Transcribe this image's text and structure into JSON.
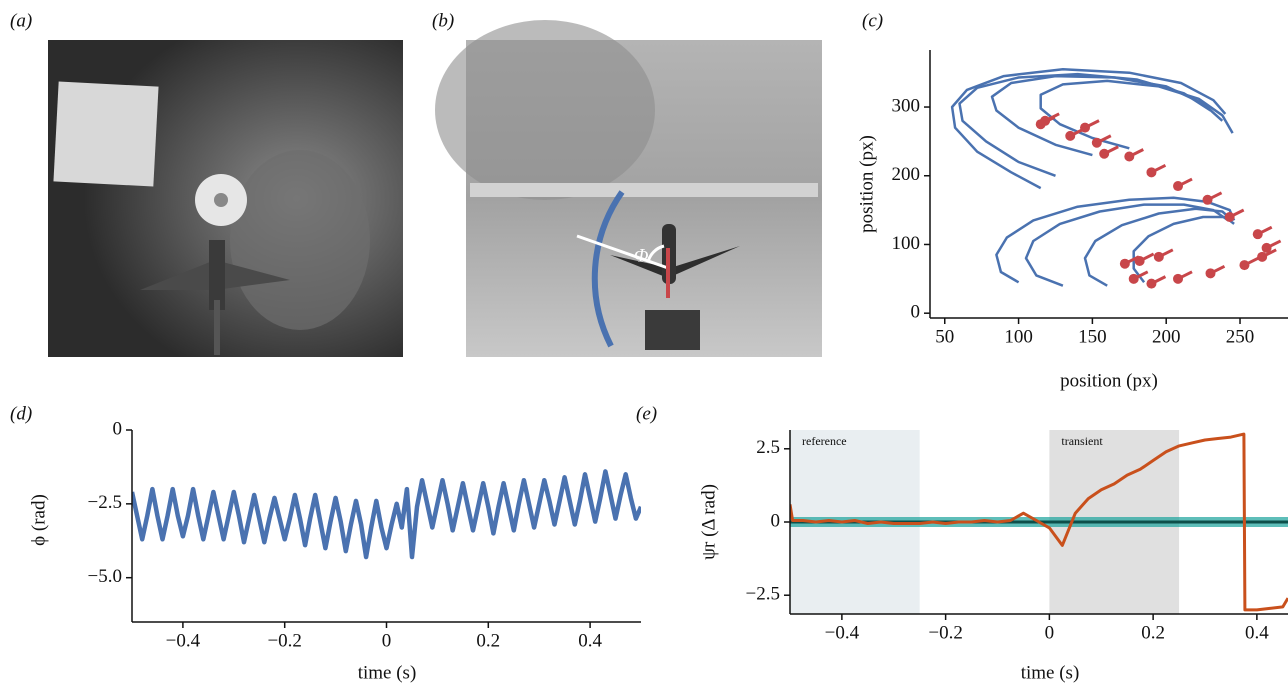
{
  "panel_labels": [
    "(a)",
    "(b)",
    "(c)",
    "(d)",
    "(e)"
  ],
  "photo_annotation": "Φ",
  "chart_data": [
    {
      "type": "line",
      "xlabel": "position (px)",
      "ylabel": "position (px)",
      "xlim": [
        40,
        282.5
      ],
      "ylim": [
        -7,
        383
      ],
      "xticks": [
        50,
        100,
        150,
        200,
        250
      ],
      "yticks": [
        0,
        100,
        200,
        300
      ],
      "series": [
        {
          "color": "#4a72b0",
          "style": "line",
          "x": [
            115,
            95,
            72,
            57,
            55,
            65,
            90,
            130,
            175,
            210,
            232,
            240
          ],
          "values": [
            182,
            205,
            235,
            270,
            300,
            325,
            345,
            355,
            350,
            335,
            310,
            290
          ]
        },
        {
          "color": "#4a72b0",
          "style": "line",
          "x": [
            125,
            100,
            78,
            62,
            60,
            72,
            100,
            140,
            180,
            212,
            230
          ],
          "values": [
            200,
            220,
            250,
            280,
            305,
            328,
            343,
            348,
            340,
            320,
            295
          ]
        },
        {
          "color": "#4a72b0",
          "style": "line",
          "x": [
            150,
            125,
            100,
            85,
            82,
            95,
            125,
            165,
            200,
            225,
            238
          ],
          "values": [
            230,
            245,
            270,
            295,
            315,
            335,
            345,
            343,
            330,
            305,
            280
          ]
        },
        {
          "color": "#4a72b0",
          "style": "line",
          "x": [
            175,
            150,
            128,
            115,
            115,
            130,
            160,
            195,
            222,
            238,
            245
          ],
          "values": [
            240,
            255,
            275,
            298,
            318,
            333,
            338,
            330,
            312,
            288,
            262
          ]
        },
        {
          "color": "#4a72b0",
          "style": "line",
          "x": [
            100,
            88,
            85,
            92,
            110,
            140,
            175,
            205,
            228,
            243,
            246
          ],
          "values": [
            45,
            60,
            85,
            110,
            135,
            155,
            165,
            168,
            162,
            150,
            135
          ]
        },
        {
          "color": "#4a72b0",
          "style": "line",
          "x": [
            130,
            112,
            105,
            110,
            128,
            155,
            185,
            212,
            232,
            242
          ],
          "values": [
            40,
            55,
            80,
            105,
            130,
            148,
            158,
            158,
            150,
            135
          ]
        },
        {
          "color": "#4a72b0",
          "style": "line",
          "x": [
            160,
            148,
            145,
            152,
            170,
            195,
            220,
            238,
            245
          ],
          "values": [
            40,
            55,
            80,
            105,
            128,
            145,
            152,
            148,
            135
          ]
        },
        {
          "color": "#4a72b0",
          "style": "line",
          "x": [
            185,
            178,
            178,
            188,
            205,
            225,
            240,
            246
          ],
          "values": [
            45,
            65,
            90,
            112,
            130,
            140,
            140,
            130
          ]
        },
        {
          "color": "#c8464a",
          "style": "points",
          "x": [
            115,
            118,
            135,
            145,
            153,
            158,
            175,
            190,
            208,
            228,
            243,
            262,
            268,
            265,
            253,
            230,
            208,
            190,
            178,
            172,
            182,
            195
          ],
          "values": [
            275,
            280,
            258,
            270,
            248,
            232,
            228,
            205,
            185,
            165,
            140,
            115,
            95,
            82,
            70,
            58,
            50,
            43,
            50,
            72,
            76,
            82
          ]
        }
      ]
    },
    {
      "type": "line",
      "xlabel": "time (s)",
      "ylabel": "ϕ (rad)",
      "xlim": [
        -0.5,
        0.5
      ],
      "ylim": [
        -6.5,
        0
      ],
      "xticks": [
        {
          "value": -0.4,
          "label": "−0.4"
        },
        {
          "value": -0.2,
          "label": "−0.2"
        },
        0,
        0.2,
        0.4
      ],
      "yticks": [
        0,
        {
          "value": -2.5,
          "label": "−2.5"
        },
        {
          "value": -5,
          "label": "−5.0"
        }
      ],
      "x": [
        -0.5,
        -0.49,
        -0.48,
        -0.47,
        -0.46,
        -0.45,
        -0.44,
        -0.43,
        -0.42,
        -0.41,
        -0.4,
        -0.39,
        -0.38,
        -0.37,
        -0.36,
        -0.35,
        -0.34,
        -0.33,
        -0.32,
        -0.31,
        -0.3,
        -0.29,
        -0.28,
        -0.27,
        -0.26,
        -0.25,
        -0.24,
        -0.23,
        -0.22,
        -0.21,
        -0.2,
        -0.19,
        -0.18,
        -0.17,
        -0.16,
        -0.15,
        -0.14,
        -0.13,
        -0.12,
        -0.11,
        -0.1,
        -0.09,
        -0.08,
        -0.07,
        -0.06,
        -0.05,
        -0.04,
        -0.03,
        -0.02,
        -0.01,
        0,
        0.01,
        0.02,
        0.03,
        0.04,
        0.05,
        0.06,
        0.07,
        0.08,
        0.09,
        0.1,
        0.11,
        0.12,
        0.13,
        0.14,
        0.15,
        0.16,
        0.17,
        0.18,
        0.19,
        0.2,
        0.21,
        0.22,
        0.23,
        0.24,
        0.25,
        0.26,
        0.27,
        0.28,
        0.29,
        0.3,
        0.31,
        0.32,
        0.33,
        0.34,
        0.35,
        0.36,
        0.37,
        0.38,
        0.39,
        0.4,
        0.41,
        0.42,
        0.43,
        0.44,
        0.45,
        0.46,
        0.47,
        0.48,
        0.49,
        0.5
      ],
      "series": [
        {
          "color": "#4a72b0",
          "style": "line",
          "values": [
            -2.1,
            -2.9,
            -3.7,
            -2.9,
            -2.0,
            -2.9,
            -3.7,
            -2.9,
            -2.0,
            -2.9,
            -3.6,
            -2.9,
            -2.0,
            -2.9,
            -3.7,
            -2.9,
            -2.1,
            -2.9,
            -3.7,
            -2.9,
            -2.1,
            -2.9,
            -3.8,
            -3.0,
            -2.2,
            -3.0,
            -3.8,
            -3.0,
            -2.3,
            -3.0,
            -3.7,
            -3.0,
            -2.2,
            -3.0,
            -3.9,
            -3.0,
            -2.2,
            -3.1,
            -4.0,
            -3.1,
            -2.3,
            -3.1,
            -4.1,
            -3.2,
            -2.4,
            -3.2,
            -4.3,
            -3.3,
            -2.4,
            -3.3,
            -4.0,
            -3.2,
            -2.5,
            -3.3,
            -2.0,
            -4.3,
            -2.6,
            -1.7,
            -2.5,
            -3.3,
            -2.5,
            -1.7,
            -2.5,
            -3.4,
            -2.6,
            -1.8,
            -2.6,
            -3.4,
            -2.6,
            -1.8,
            -2.6,
            -3.5,
            -2.6,
            -1.8,
            -2.6,
            -3.4,
            -2.5,
            -1.7,
            -2.5,
            -3.3,
            -2.5,
            -1.7,
            -2.4,
            -3.2,
            -2.4,
            -1.6,
            -2.4,
            -3.2,
            -2.4,
            -1.5,
            -2.3,
            -3.1,
            -2.3,
            -1.4,
            -2.2,
            -3.0,
            -2.2,
            -1.5,
            -2.3,
            -3.0,
            -2.6
          ]
        }
      ]
    },
    {
      "type": "line",
      "xlabel": "time (s)",
      "ylabel": "ψr (Δ rad)",
      "xlim": [
        -0.5,
        0.46
      ],
      "ylim": [
        -3.1416,
        3.1416
      ],
      "xticks": [
        {
          "value": -0.4,
          "label": "−0.4"
        },
        {
          "value": -0.2,
          "label": "−0.2"
        },
        0,
        0.2,
        0.4
      ],
      "yticks": [
        2.5,
        0,
        {
          "value": -2.5,
          "label": "−2.5"
        }
      ],
      "spans": [
        {
          "label": "reference",
          "x": [
            -0.5,
            -0.25
          ],
          "color": "#e9eef1"
        },
        {
          "label": "transient",
          "x": [
            0,
            0.25
          ],
          "color": "#e0e0e0"
        }
      ],
      "hline": {
        "value": 0,
        "color": "#1ba39c"
      },
      "series": [
        {
          "color": "#c9501c",
          "style": "line",
          "x": [
            -0.5,
            -0.495,
            -0.475,
            -0.45,
            -0.425,
            -0.4,
            -0.375,
            -0.35,
            -0.325,
            -0.3,
            -0.275,
            -0.25,
            -0.225,
            -0.2,
            -0.175,
            -0.15,
            -0.125,
            -0.1,
            -0.075,
            -0.05,
            -0.025,
            0,
            0.025,
            0.05,
            0.075,
            0.1,
            0.125,
            0.15,
            0.175,
            0.2,
            0.225,
            0.25,
            0.275,
            0.3,
            0.325,
            0.35,
            0.375,
            0.377,
            0.4,
            0.425,
            0.45,
            0.46
          ],
          "values": [
            0.6,
            0.05,
            0.05,
            0.0,
            0.05,
            0.0,
            0.05,
            -0.05,
            0.0,
            -0.05,
            -0.05,
            -0.05,
            0.0,
            -0.05,
            0.0,
            0.0,
            0.05,
            0.0,
            0.05,
            0.3,
            0.05,
            -0.2,
            -0.8,
            0.3,
            0.8,
            1.1,
            1.3,
            1.6,
            1.8,
            2.1,
            2.4,
            2.6,
            2.7,
            2.8,
            2.85,
            2.9,
            3.0,
            -3.0,
            -3.0,
            -2.95,
            -2.9,
            -2.6
          ]
        }
      ]
    }
  ]
}
